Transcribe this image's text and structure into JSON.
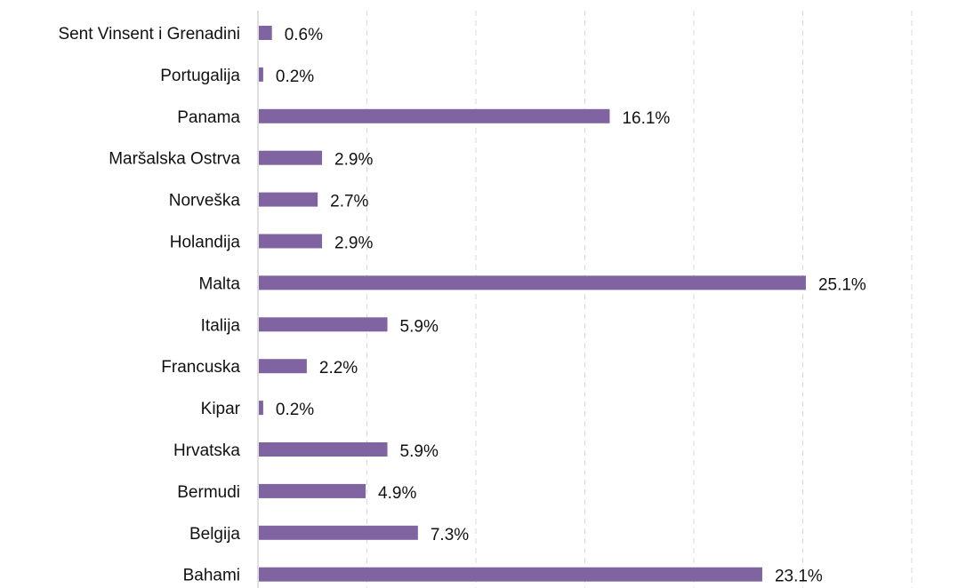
{
  "chart_data": {
    "type": "bar",
    "orientation": "horizontal",
    "categories": [
      "Sent Vinsent i Grenadini",
      "Portugalija",
      "Panama",
      "Maršalska Ostrva",
      "Norveška",
      "Holandija",
      "Malta",
      "Italija",
      "Francuska",
      "Kipar",
      "Hrvatska",
      "Bermudi",
      "Belgija",
      "Bahami"
    ],
    "values": [
      0.6,
      0.2,
      16.1,
      2.9,
      2.7,
      2.9,
      25.1,
      5.9,
      2.2,
      0.2,
      5.9,
      4.9,
      7.3,
      23.1
    ],
    "data_labels": [
      "0.6%",
      "0.2%",
      "16.1%",
      "2.9%",
      "2.7%",
      "2.9%",
      "25.1%",
      "5.9%",
      "2.2%",
      "0.2%",
      "5.9%",
      "4.9%",
      "7.3%",
      "23.1%"
    ],
    "title": "",
    "xlabel": "",
    "ylabel": "",
    "xlim": [
      0,
      30
    ],
    "grid": "vertical dashed",
    "legend": "none",
    "bar_color": "#8064a2"
  }
}
